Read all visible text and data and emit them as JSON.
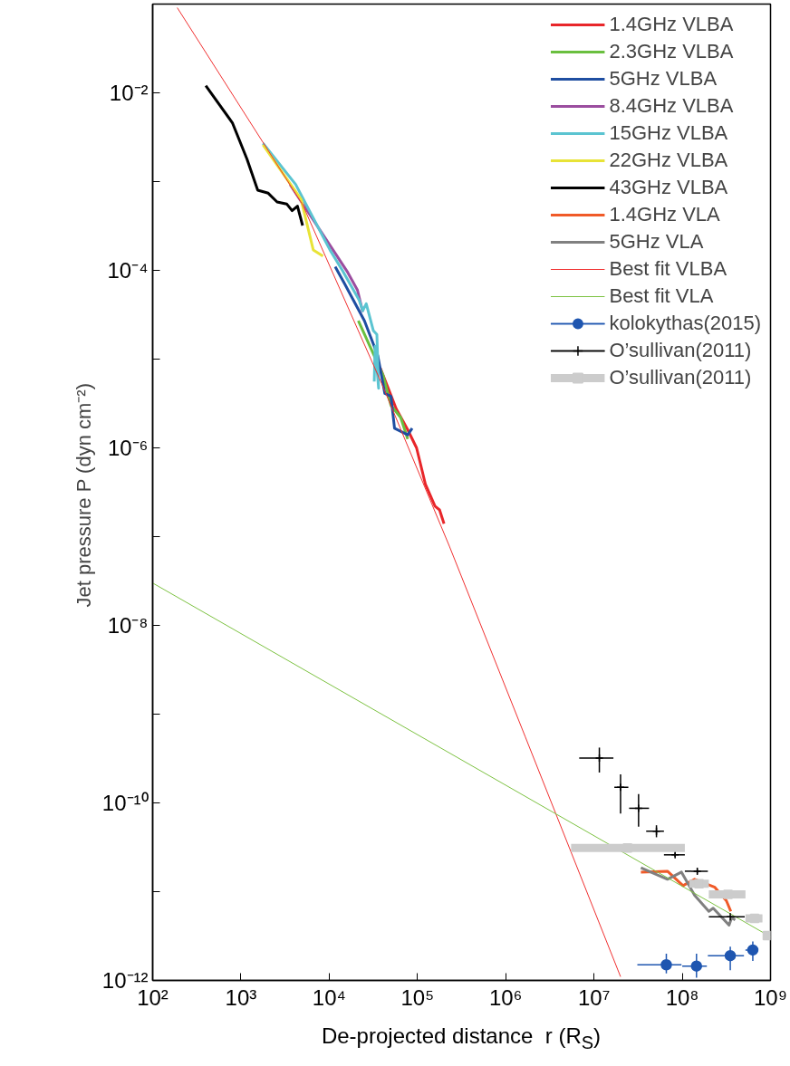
{
  "chart_data": {
    "type": "line",
    "xlabel": "De-projected distance  r (R$_{S}$)",
    "ylabel": "Jet pressure  P (dyn cm⁻²)",
    "log": "xy",
    "xlim": [
      100,
      1000000000
    ],
    "ylim": [
      1e-12,
      0.1
    ],
    "xticks": [
      {
        "value": 100,
        "label": "10²"
      },
      {
        "value": 1000,
        "label": "10³"
      },
      {
        "value": 10000,
        "label": "10⁴"
      },
      {
        "value": 100000,
        "label": "10⁵"
      },
      {
        "value": 1000000,
        "label": "10⁶"
      },
      {
        "value": 10000000,
        "label": "10⁷"
      },
      {
        "value": 100000000,
        "label": "10⁸"
      },
      {
        "value": 1000000000,
        "label": "10⁹"
      }
    ],
    "yticks": [
      {
        "value": 1e-12,
        "label": "10⁻¹²"
      },
      {
        "value": 1e-11,
        "label": null
      },
      {
        "value": 1e-10,
        "label": "10⁻¹⁰"
      },
      {
        "value": 1e-09,
        "label": null
      },
      {
        "value": 1e-08,
        "label": "10⁻⁸"
      },
      {
        "value": 1e-07,
        "label": null
      },
      {
        "value": 1e-06,
        "label": "10⁻⁶"
      },
      {
        "value": 1e-05,
        "label": null
      },
      {
        "value": 0.0001,
        "label": "10⁻⁴"
      },
      {
        "value": 0.001,
        "label": null
      },
      {
        "value": 0.01,
        "label": "10⁻²"
      }
    ],
    "grid": false,
    "legend": "top right",
    "series": [
      {
        "name": "1.4GHz VLBA",
        "color": "#e8262a",
        "x": [
          38000,
          47900,
          57500,
          77600,
          97700,
          123000,
          158000,
          178000,
          200000
        ],
        "values": [
          7.9e-06,
          4.4e-06,
          2.75e-06,
          1.6e-06,
          1e-06,
          3.9e-07,
          2.2e-07,
          2e-07,
          1.4e-07
        ]
      },
      {
        "name": "2.3GHz VLBA",
        "color": "#6abf3f",
        "x": [
          21400,
          40700,
          50100,
          64600,
          77600
        ],
        "values": [
          2.7e-05,
          6.6e-06,
          3e-06,
          2.2e-06,
          1.26e-06
        ]
      },
      {
        "name": "5GHz VLBA",
        "color": "#1f4ea1",
        "x": [
          11700,
          14800,
          25100,
          35500,
          42700,
          50100,
          55000,
          77600,
          87100
        ],
        "values": [
          0.00011,
          7.2e-05,
          2.7e-05,
          1.1e-05,
          4.1e-06,
          3.8e-06,
          1.66e-06,
          1.4e-06,
          1.66e-06
        ]
      },
      {
        "name": "8.4GHz VLBA",
        "color": "#9b4d9f",
        "x": [
          3600,
          16200,
          20900,
          24000
        ],
        "values": [
          0.00093,
          9.5e-05,
          6e-05,
          3.4e-05
        ]
      },
      {
        "name": "15GHz VLBA",
        "color": "#5bc4d1",
        "x": [
          1780,
          4170,
          10200,
          14100,
          21900,
          24000,
          26300,
          31600,
          34700,
          36300,
          33100,
          32400
        ],
        "values": [
          0.0027,
          0.00093,
          0.00017,
          0.0001,
          4.6e-05,
          3.5e-05,
          4.2e-05,
          2.1e-05,
          1.9e-05,
          4.7e-06,
          1.4e-05,
          5.6e-06
        ]
      },
      {
        "name": "22GHz VLBA",
        "color": "#e8e337",
        "x": [
          1780,
          4800,
          6600,
          8500
        ],
        "values": [
          0.0026,
          0.00063,
          0.00017,
          0.000145
        ]
      },
      {
        "name": "43GHz VLBA",
        "color": "#000000",
        "x": [
          400,
          800,
          1170,
          1550,
          2040,
          2570,
          3300,
          3800,
          4370,
          5000
        ],
        "values": [
          0.012,
          0.0046,
          0.0018,
          0.0008,
          0.00074,
          0.00059,
          0.00056,
          0.00047,
          0.00053,
          0.00032
        ]
      },
      {
        "name": "1.4GHz VLA",
        "color": "#f05a28",
        "x": [
          34000000,
          68000000,
          102000000,
          138000000,
          234000000,
          316000000,
          355000000
        ],
        "values": [
          1.66e-11,
          1.7e-11,
          1.17e-11,
          1.38e-11,
          1.12e-11,
          7.9e-12,
          6e-12
        ]
      },
      {
        "name": "5GHz VLA",
        "color": "#808080",
        "x": [
          34000000,
          68000000,
          98000000,
          138000000,
          200000000,
          224000000,
          339000000,
          363000000,
          398000000
        ],
        "values": [
          1.86e-11,
          1.38e-11,
          1.66e-11,
          9.1e-12,
          6e-12,
          6.5e-12,
          4.2e-12,
          5.1e-12,
          4.8e-12
        ]
      },
      {
        "name": "Best fit VLBA",
        "color": "#f03030",
        "x": [
          190,
          5000,
          40000,
          230000,
          1660000,
          20000000
        ],
        "values": [
          0.091,
          0.00055,
          5.1e-06,
          7.8e-08,
          5.6e-10,
          1.1e-12
        ]
      },
      {
        "name": "Best fit VLA",
        "color": "#7dc242",
        "x": [
          100,
          1000000000
        ],
        "values": [
          3e-08,
          3.1e-12
        ]
      },
      {
        "name": "kolokythas(2015)",
        "color": "#1f56b0",
        "type": "scatter",
        "marker": "circle",
        "x": [
          66000000,
          145000000,
          350000000,
          630000000
        ],
        "values": [
          1.5e-12,
          1.45e-12,
          1.9e-12,
          2.2e-12
        ],
        "xerrors": [
          [
            31000000,
            98000000
          ],
          [
            100000000,
            190000000
          ],
          [
            195000000,
            500000000
          ],
          [
            520000000,
            710000000
          ]
        ],
        "errors": [
          [
            1.2e-12,
            2e-12
          ],
          [
            1.07e-12,
            2e-12
          ],
          [
            1.3e-12,
            2.4e-12
          ],
          [
            1.66e-12,
            2.75e-12
          ]
        ]
      },
      {
        "name": "O’sullivan(2011)",
        "color": "#000000",
        "type": "scatter",
        "marker": "cross",
        "x": [
          11500000,
          20000000,
          32000000,
          51000000,
          83000000,
          148000000,
          350000000
        ],
        "values": [
          3.2e-10,
          1.5e-10,
          8.7e-11,
          4.8e-11,
          2.6e-11,
          1.7e-11,
          5.2e-12
        ],
        "xerrors": [
          [
            6800000,
            16600000
          ],
          [
            17000000,
            24500000
          ],
          [
            25000000,
            42000000
          ],
          [
            39000000,
            62000000
          ],
          [
            62000000,
            107000000
          ],
          [
            107000000,
            195000000
          ],
          [
            200000000,
            510000000
          ]
        ],
        "errors": [
          [
            2.2e-10,
            4.2e-10
          ],
          [
            7.6e-11,
            2.1e-10
          ],
          [
            5.4e-11,
            1.26e-10
          ],
          [
            4.1e-11,
            5.6e-11
          ],
          [
            2.45e-11,
            2.75e-11
          ],
          [
            1.6e-11,
            1.8e-11
          ],
          null
        ]
      },
      {
        "name": "O’sullivan(2011)",
        "color": "#cccccc",
        "type": "scatter",
        "marker": "square",
        "x": [
          24000000,
          155000000,
          330000000,
          660000000,
          920000000
        ],
        "values": [
          3.1e-11,
          1.23e-11,
          9.3e-12,
          5e-12,
          3.2e-12
        ],
        "xerrors": [
          [
            5500000,
            107000000
          ],
          [
            120000000,
            200000000
          ],
          [
            200000000,
            520000000
          ],
          [
            520000000,
            810000000
          ],
          [
            850000000,
            1000000000
          ]
        ]
      }
    ]
  }
}
